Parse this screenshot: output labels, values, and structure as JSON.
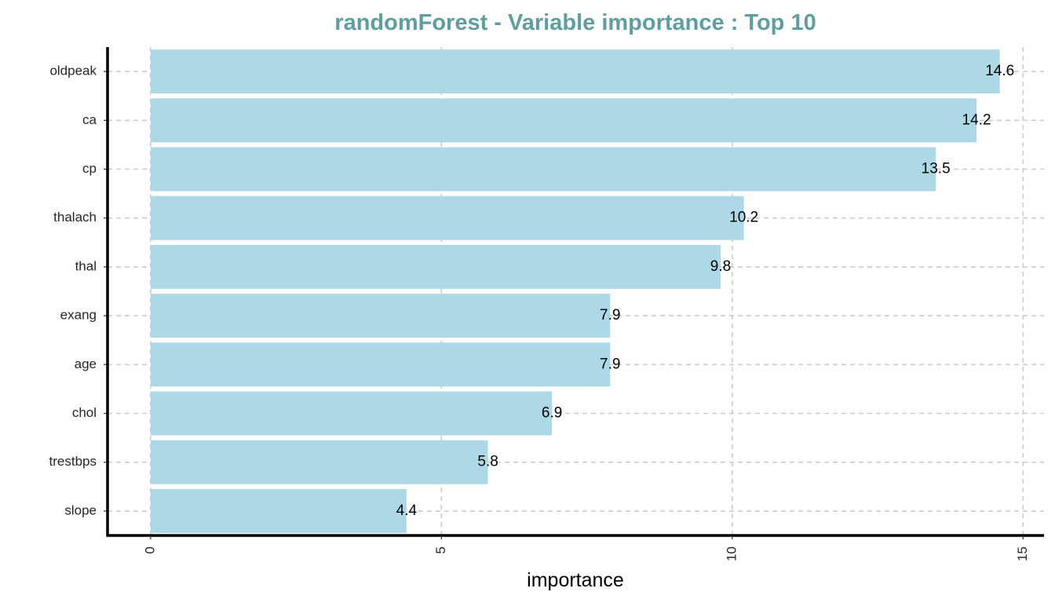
{
  "chart_data": {
    "type": "bar",
    "orientation": "horizontal",
    "title": "randomForest - Variable importance : Top 10",
    "xlabel": "importance",
    "ylabel": "",
    "categories": [
      "oldpeak",
      "ca",
      "cp",
      "thalach",
      "thal",
      "exang",
      "age",
      "chol",
      "trestbps",
      "slope"
    ],
    "values": [
      14.6,
      14.2,
      13.5,
      10.2,
      9.8,
      7.9,
      7.9,
      6.9,
      5.8,
      4.4
    ],
    "value_labels": [
      "14.6",
      "14.2",
      "13.5",
      "10.2",
      "9.8",
      "7.9",
      "7.9",
      "6.9",
      "5.8",
      "4.4"
    ],
    "xlim": [
      -0.74,
      15.36
    ],
    "xticks": [
      0,
      5,
      10,
      15
    ],
    "xtick_labels": [
      "0",
      "5",
      "10",
      "15"
    ],
    "grid": true,
    "legend": "none"
  },
  "colors": {
    "bar": "#add8e6",
    "title": "#5f9ea0",
    "grid": "#cccccc",
    "axis_line": "#000000"
  }
}
